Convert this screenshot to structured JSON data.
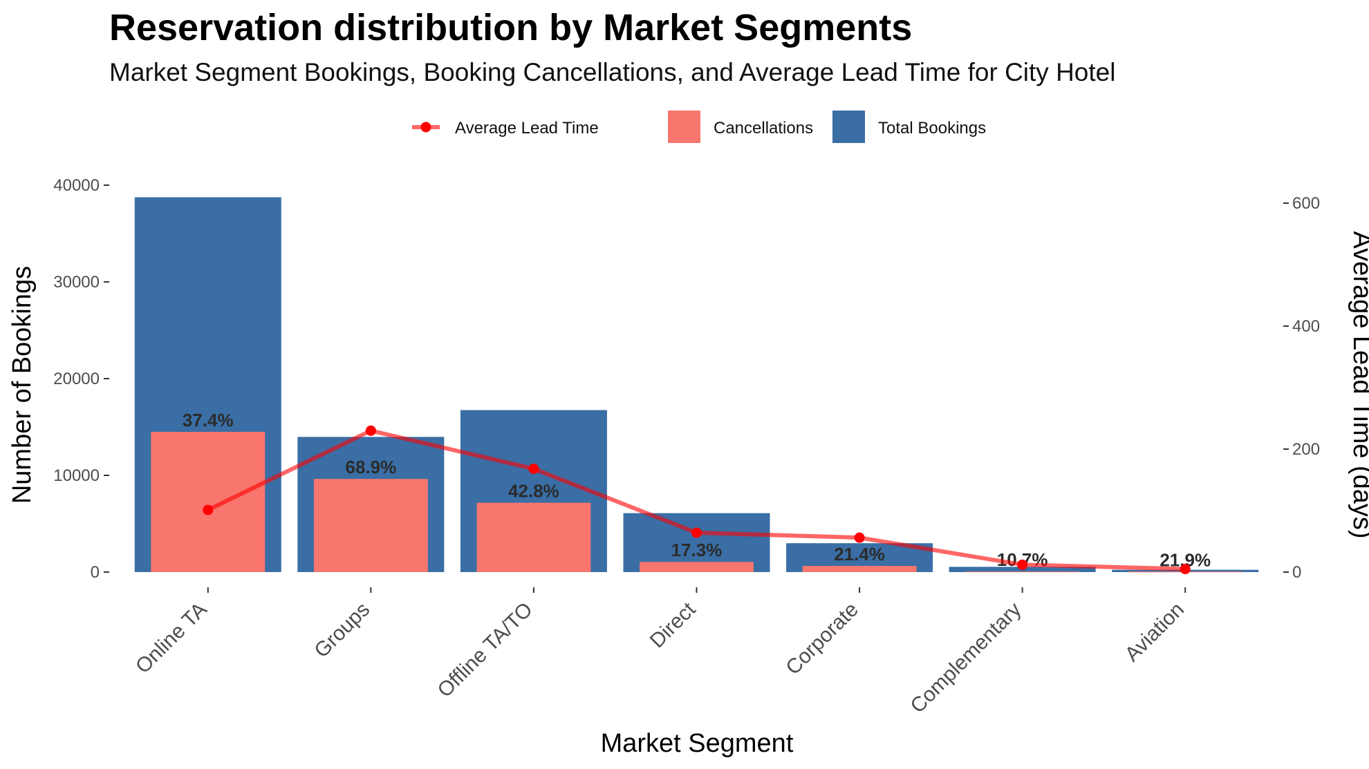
{
  "chart_data": {
    "type": "bar",
    "title": "Reservation distribution by Market Segments",
    "subtitle": "Market Segment Bookings, Booking Cancellations, and Average Lead Time for City Hotel",
    "xlabel": "Market Segment",
    "ylabel": "Number of Bookings",
    "y2label": "Average Lead Time (days)",
    "categories": [
      "Online TA",
      "Groups",
      "Offline TA/TO",
      "Direct",
      "Corporate",
      "Complementary",
      "Aviation"
    ],
    "series": [
      {
        "name": "Total Bookings",
        "type": "bar",
        "color": "#3a6ea5",
        "values": [
          38750,
          13975,
          16747,
          6093,
          2986,
          542,
          237
        ]
      },
      {
        "name": "Cancellations",
        "type": "bar",
        "color": "#f8766d",
        "values": [
          14500,
          9630,
          7170,
          1054,
          640,
          58,
          52
        ]
      },
      {
        "name": "Average Lead Time",
        "type": "line",
        "axis": "right",
        "color": "#ff0000",
        "values": [
          101,
          230,
          168,
          64,
          56,
          12,
          5
        ]
      }
    ],
    "cancellation_labels": [
      "37.4%",
      "68.9%",
      "42.8%",
      "17.3%",
      "21.4%",
      "10.7%",
      "21.9%"
    ],
    "ylim": [
      0,
      40000
    ],
    "yticks": [
      0,
      10000,
      20000,
      30000,
      40000
    ],
    "y2lim": [
      0,
      600
    ],
    "y2ticks": [
      0,
      200,
      400,
      600
    ],
    "grid": false,
    "legend_position": "top"
  }
}
